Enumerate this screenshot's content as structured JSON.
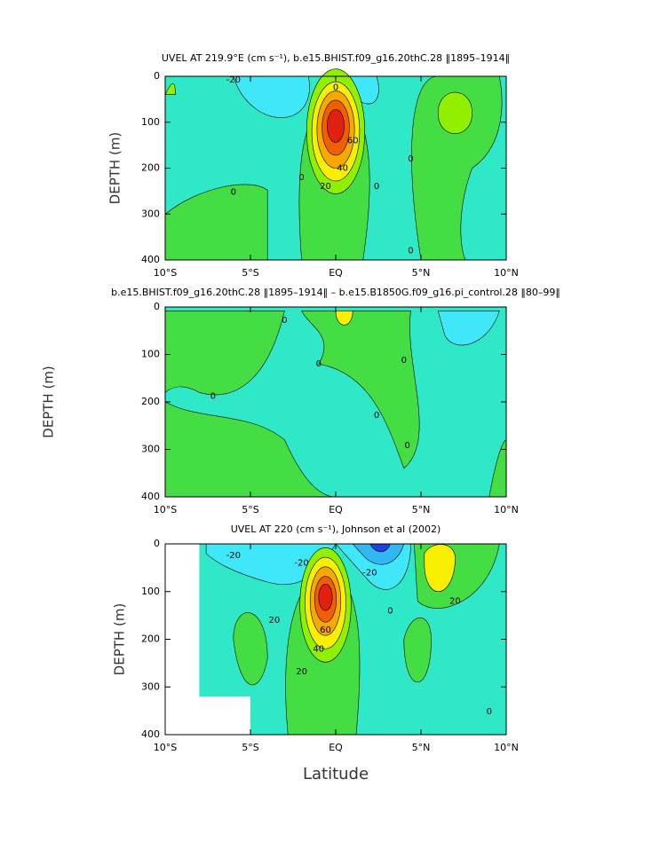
{
  "chart_data": [
    {
      "type": "contour",
      "title": "UVEL AT 219.9°E (cm s⁻¹), b.e15.BHIST.f09_g16.20thC.28 ‖1895–1914‖",
      "ylabel": "DEPTH (m)",
      "xlim": [
        -10,
        10
      ],
      "ylim": [
        0,
        400
      ],
      "y_inverted": true,
      "xticks": [
        {
          "value": -10,
          "label": "10°S"
        },
        {
          "value": -5,
          "label": "5°S"
        },
        {
          "value": 0,
          "label": "EQ"
        },
        {
          "value": 5,
          "label": "5°N"
        },
        {
          "value": 10,
          "label": "10°N"
        }
      ],
      "yticks": [
        0,
        100,
        200,
        300,
        400
      ],
      "contour_labels": [
        "-20",
        "0",
        "0",
        "0",
        "20",
        "40",
        "60",
        "0",
        "0",
        "0"
      ]
    },
    {
      "type": "contour",
      "title": "b.e15.BHIST.f09_g16.20thC.28 ‖1895–1914‖ – b.e15.B1850G.f09_g16.pi_control.28 ‖80–99‖",
      "ylabel": "DEPTH (m)",
      "xlim": [
        -10,
        10
      ],
      "ylim": [
        0,
        400
      ],
      "y_inverted": true,
      "xticks": [
        {
          "value": -10,
          "label": "10°S"
        },
        {
          "value": -5,
          "label": "5°S"
        },
        {
          "value": 0,
          "label": "EQ"
        },
        {
          "value": 5,
          "label": "5°N"
        },
        {
          "value": 10,
          "label": "10°N"
        }
      ],
      "yticks": [
        0,
        100,
        200,
        300,
        400
      ],
      "contour_labels": [
        "0",
        "0",
        "0",
        "0",
        "0",
        "0"
      ]
    },
    {
      "type": "contour",
      "title": "UVEL AT 220 (cm s⁻¹), Johnson et al (2002)",
      "ylabel": "DEPTH (m)",
      "xlabel": "Latitude",
      "xlim": [
        -10,
        10
      ],
      "ylim": [
        0,
        400
      ],
      "y_inverted": true,
      "xticks": [
        {
          "value": -10,
          "label": "10°S"
        },
        {
          "value": -5,
          "label": "5°S"
        },
        {
          "value": 0,
          "label": "EQ"
        },
        {
          "value": 5,
          "label": "5°N"
        },
        {
          "value": 10,
          "label": "10°N"
        }
      ],
      "yticks": [
        0,
        100,
        200,
        300,
        400
      ],
      "contour_labels": [
        "-20",
        "-20",
        "20",
        "40",
        "60",
        "20",
        "-20",
        "20",
        "0",
        "0"
      ]
    }
  ]
}
